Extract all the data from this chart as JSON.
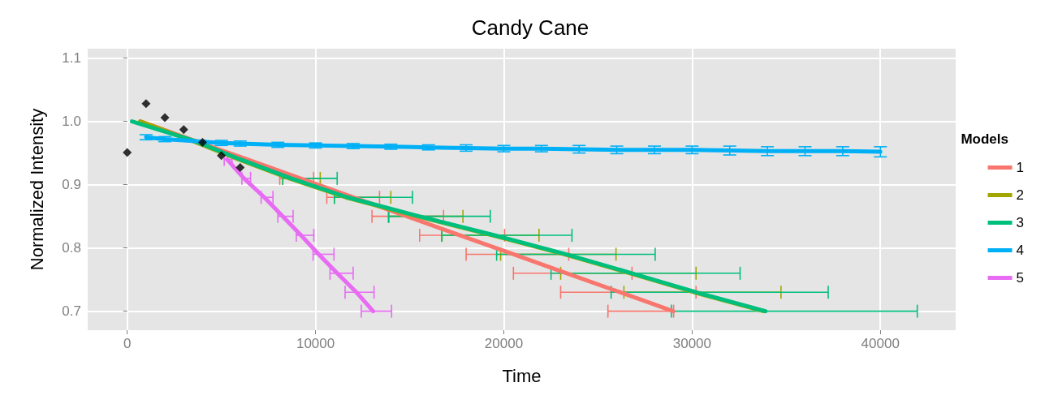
{
  "chart_data": {
    "type": "line",
    "title": "Candy Cane",
    "xlabel": "Time",
    "ylabel": "Normalized Intensity",
    "legend_title": "Models",
    "legend": "right",
    "grid": true,
    "marker": "none",
    "line_style": "solid",
    "xlim": [
      -2100,
      44000
    ],
    "xticks": [
      0,
      10000,
      20000,
      30000,
      40000
    ],
    "ylim": [
      0.67,
      1.115
    ],
    "yticks": [
      0.7,
      0.8,
      0.9,
      {
        "value": 1.0,
        "label": "1.0"
      },
      1.1
    ],
    "series": [
      {
        "name": "1",
        "color": "#f8766d",
        "x": [
          700,
          3530,
          6360,
          9190,
          12020,
          14850,
          17680,
          20510,
          23340,
          26170,
          29000
        ],
        "values": [
          1.0,
          0.97,
          0.94,
          0.91,
          0.88,
          0.85,
          0.82,
          0.79,
          0.76,
          0.73,
          0.7
        ],
        "xerrors": [
          null,
          null,
          null,
          [
            8100,
            9900
          ],
          [
            10600,
            13400
          ],
          [
            13000,
            16800
          ],
          [
            15530,
            20040
          ],
          [
            18000,
            23450
          ],
          [
            20510,
            26810
          ],
          [
            23020,
            30210
          ],
          [
            25530,
            29020
          ]
        ]
      },
      {
        "name": "2",
        "color": "#a3a500",
        "x": [
          680,
          3400,
          5900,
          8600,
          11600,
          15400,
          19400,
          23200,
          26700,
          30100,
          33800
        ],
        "values": [
          1.0,
          0.97,
          0.94,
          0.91,
          0.88,
          0.85,
          0.82,
          0.79,
          0.76,
          0.73,
          0.7
        ],
        "xerrors": [
          null,
          null,
          null,
          [
            8260,
            10250
          ],
          [
            11000,
            14000
          ],
          [
            13900,
            17830
          ],
          [
            16720,
            21870
          ],
          [
            19830,
            25960
          ],
          [
            23020,
            30210
          ],
          [
            26380,
            34720
          ],
          null
        ]
      },
      {
        "name": "3",
        "color": "#00bf7d",
        "x": [
          250,
          3500,
          6000,
          8700,
          11700,
          15500,
          19500,
          23300,
          26800,
          30200,
          33900
        ],
        "values": [
          1.0,
          0.97,
          0.94,
          0.91,
          0.88,
          0.85,
          0.82,
          0.79,
          0.76,
          0.73,
          0.7
        ],
        "xerrors": [
          null,
          null,
          null,
          [
            8260,
            11150
          ],
          [
            11000,
            15150
          ],
          [
            13870,
            19280
          ],
          [
            16700,
            23620
          ],
          [
            19620,
            28040
          ],
          [
            22510,
            32550
          ],
          [
            25700,
            37230
          ],
          [
            28900,
            41960
          ]
        ]
      },
      {
        "name": "4",
        "color": "#00b0f6",
        "x": [
          1000,
          2000,
          5000,
          6000,
          8000,
          10000,
          12000,
          14000,
          16000,
          18000,
          20000,
          22000,
          24000,
          26000,
          28000,
          30000,
          32000,
          34000,
          36000,
          38000,
          40000
        ],
        "values": [
          0.975,
          0.972,
          0.966,
          0.965,
          0.963,
          0.962,
          0.961,
          0.96,
          0.959,
          0.958,
          0.957,
          0.957,
          0.956,
          0.955,
          0.955,
          0.955,
          0.954,
          0.953,
          0.953,
          0.953,
          0.952
        ],
        "errors": [
          0.004,
          0.004,
          0.004,
          0.004,
          0.004,
          0.004,
          0.004,
          0.004,
          0.004,
          0.005,
          0.005,
          0.005,
          0.006,
          0.006,
          0.006,
          0.006,
          0.007,
          0.007,
          0.007,
          0.007,
          0.008
        ]
      },
      {
        "name": "5",
        "color": "#e76bf3",
        "x": [
          5300,
          6200,
          7280,
          8260,
          9230,
          10170,
          11150,
          12170,
          13060
        ],
        "values": [
          0.94,
          0.91,
          0.88,
          0.85,
          0.82,
          0.79,
          0.76,
          0.73,
          0.7
        ],
        "xerrors": [
          [
            5150,
            5570
          ],
          [
            6090,
            6550
          ],
          [
            7110,
            7740
          ],
          [
            8000,
            8810
          ],
          [
            8980,
            9910
          ],
          [
            9870,
            10980
          ],
          [
            10770,
            12000
          ],
          [
            11570,
            13110
          ],
          [
            12430,
            14040
          ]
        ]
      },
      {
        "type": "scatter",
        "marker": "diamond",
        "color": "#000000",
        "x": [
          0,
          1000,
          2000,
          3000,
          4000,
          5000,
          6000
        ],
        "values": [
          0.951,
          1.028,
          1.006,
          0.987,
          0.967,
          0.946,
          0.927
        ]
      }
    ]
  }
}
